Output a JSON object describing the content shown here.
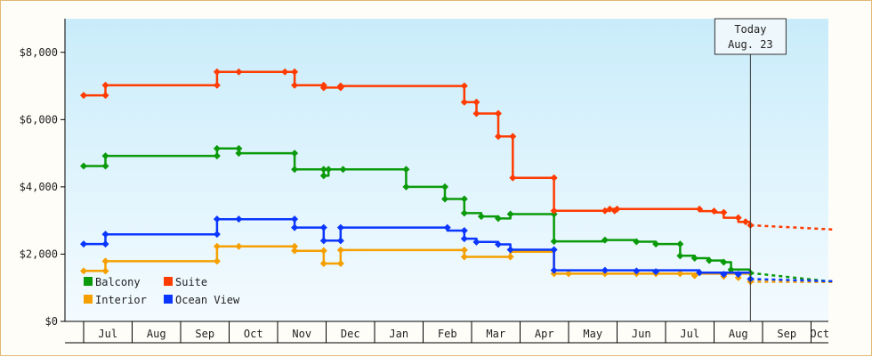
{
  "chart_data": {
    "type": "line",
    "step": true,
    "title": "",
    "xlabel": "",
    "ylabel": "",
    "ylim": [
      0,
      9000
    ],
    "y_ticks": [
      0,
      2000,
      4000,
      6000,
      8000
    ],
    "y_tick_labels": [
      "$0",
      "$2,000",
      "$4,000",
      "$6,000",
      "$8,000"
    ],
    "x_ticks": [
      "Jul",
      "Aug",
      "Sep",
      "Oct",
      "Nov",
      "Dec",
      "Jan",
      "Feb",
      "Mar",
      "Apr",
      "May",
      "Jun",
      "Jul",
      "Aug",
      "Sep",
      "Oct"
    ],
    "x_range_months": [
      0,
      15.5
    ],
    "grid": false,
    "legend_position": "bottom-left",
    "today_marker": {
      "line1": "Today",
      "line2": "Aug. 23",
      "x": 13.75
    },
    "colors": {
      "Balcony": "#0a9a0a",
      "Suite": "#ff3b00",
      "Interior": "#f5a000",
      "Ocean View": "#0a36ff"
    },
    "series": [
      {
        "name": "Balcony",
        "points": [
          [
            0,
            4620
          ],
          [
            0.45,
            4620
          ],
          [
            0.45,
            4920
          ],
          [
            2.75,
            4920
          ],
          [
            2.75,
            5140
          ],
          [
            3.2,
            5140
          ],
          [
            3.2,
            5000
          ],
          [
            4.35,
            5000
          ],
          [
            4.35,
            4520
          ],
          [
            4.95,
            4520
          ],
          [
            4.95,
            4330
          ],
          [
            5.05,
            4330
          ],
          [
            5.05,
            4520
          ],
          [
            6.65,
            4520
          ],
          [
            6.65,
            4000
          ],
          [
            7.45,
            4000
          ],
          [
            7.45,
            3640
          ],
          [
            7.85,
            3640
          ],
          [
            7.85,
            3220
          ],
          [
            8.2,
            3220
          ],
          [
            8.2,
            3120
          ],
          [
            8.55,
            3120
          ],
          [
            8.55,
            3060
          ],
          [
            8.8,
            3060
          ],
          [
            8.8,
            3190
          ],
          [
            9.7,
            3190
          ],
          [
            9.7,
            2380
          ],
          [
            10.75,
            2380
          ],
          [
            10.75,
            2420
          ],
          [
            11.4,
            2420
          ],
          [
            11.4,
            2370
          ],
          [
            11.8,
            2370
          ],
          [
            11.8,
            2300
          ],
          [
            12.3,
            2300
          ],
          [
            12.3,
            1950
          ],
          [
            12.6,
            1950
          ],
          [
            12.6,
            1880
          ],
          [
            12.9,
            1880
          ],
          [
            12.9,
            1810
          ],
          [
            13.2,
            1810
          ],
          [
            13.2,
            1760
          ],
          [
            13.35,
            1760
          ],
          [
            13.35,
            1540
          ],
          [
            13.75,
            1540
          ]
        ],
        "projection": [
          [
            13.75,
            1440
          ],
          [
            15.5,
            1170
          ]
        ],
        "markers": [
          [
            0,
            4620
          ],
          [
            0.45,
            4620
          ],
          [
            0.45,
            4920
          ],
          [
            2.75,
            4920
          ],
          [
            2.75,
            5140
          ],
          [
            3.2,
            5140
          ],
          [
            3.2,
            5000
          ],
          [
            4.35,
            5000
          ],
          [
            4.35,
            4520
          ],
          [
            4.95,
            4520
          ],
          [
            4.95,
            4330
          ],
          [
            5.05,
            4520
          ],
          [
            5.35,
            4520
          ],
          [
            6.65,
            4520
          ],
          [
            6.65,
            4000
          ],
          [
            7.45,
            4000
          ],
          [
            7.45,
            3640
          ],
          [
            7.85,
            3640
          ],
          [
            7.85,
            3220
          ],
          [
            8.2,
            3120
          ],
          [
            8.55,
            3060
          ],
          [
            8.8,
            3190
          ],
          [
            9.7,
            3190
          ],
          [
            9.7,
            2380
          ],
          [
            10.75,
            2420
          ],
          [
            11.4,
            2370
          ],
          [
            11.8,
            2300
          ],
          [
            12.3,
            2300
          ],
          [
            12.3,
            1950
          ],
          [
            12.6,
            1880
          ],
          [
            12.9,
            1810
          ],
          [
            13.2,
            1760
          ],
          [
            13.35,
            1540
          ],
          [
            13.75,
            1440
          ]
        ]
      },
      {
        "name": "Suite",
        "points": [
          [
            0,
            6720
          ],
          [
            0.45,
            6720
          ],
          [
            0.45,
            7020
          ],
          [
            2.75,
            7020
          ],
          [
            2.75,
            7420
          ],
          [
            4.35,
            7420
          ],
          [
            4.35,
            7020
          ],
          [
            4.95,
            7020
          ],
          [
            4.95,
            6950
          ],
          [
            5.3,
            6950
          ],
          [
            5.3,
            7000
          ],
          [
            7.85,
            7000
          ],
          [
            7.85,
            6520
          ],
          [
            8.1,
            6520
          ],
          [
            8.1,
            6180
          ],
          [
            8.55,
            6180
          ],
          [
            8.55,
            5500
          ],
          [
            8.85,
            5500
          ],
          [
            8.85,
            4270
          ],
          [
            9.7,
            4270
          ],
          [
            9.7,
            3290
          ],
          [
            10.85,
            3290
          ],
          [
            10.85,
            3340
          ],
          [
            12.7,
            3340
          ],
          [
            12.7,
            3280
          ],
          [
            13.0,
            3280
          ],
          [
            13.0,
            3240
          ],
          [
            13.2,
            3240
          ],
          [
            13.2,
            3080
          ],
          [
            13.5,
            3080
          ],
          [
            13.5,
            2960
          ],
          [
            13.75,
            2960
          ]
        ],
        "projection": [
          [
            13.75,
            2860
          ],
          [
            15.5,
            2730
          ]
        ],
        "markers": [
          [
            0,
            6720
          ],
          [
            0.45,
            6720
          ],
          [
            0.45,
            7020
          ],
          [
            2.75,
            7020
          ],
          [
            2.75,
            7420
          ],
          [
            3.2,
            7420
          ],
          [
            4.15,
            7420
          ],
          [
            4.35,
            7420
          ],
          [
            4.35,
            7020
          ],
          [
            4.95,
            7020
          ],
          [
            4.95,
            6950
          ],
          [
            5.3,
            6950
          ],
          [
            5.3,
            7000
          ],
          [
            7.85,
            7000
          ],
          [
            7.85,
            6520
          ],
          [
            8.1,
            6520
          ],
          [
            8.1,
            6180
          ],
          [
            8.55,
            6180
          ],
          [
            8.55,
            5500
          ],
          [
            8.85,
            5500
          ],
          [
            8.85,
            4270
          ],
          [
            9.7,
            4270
          ],
          [
            9.7,
            3290
          ],
          [
            10.75,
            3290
          ],
          [
            10.85,
            3340
          ],
          [
            10.95,
            3290
          ],
          [
            11.0,
            3340
          ],
          [
            12.7,
            3340
          ],
          [
            13.0,
            3280
          ],
          [
            13.2,
            3240
          ],
          [
            13.5,
            3080
          ],
          [
            13.65,
            2960
          ],
          [
            13.75,
            2860
          ]
        ]
      },
      {
        "name": "Interior",
        "points": [
          [
            0,
            1500
          ],
          [
            0.45,
            1500
          ],
          [
            0.45,
            1790
          ],
          [
            2.75,
            1790
          ],
          [
            2.75,
            2230
          ],
          [
            4.35,
            2230
          ],
          [
            4.35,
            2100
          ],
          [
            4.95,
            2100
          ],
          [
            4.95,
            1720
          ],
          [
            5.3,
            1720
          ],
          [
            5.3,
            2120
          ],
          [
            7.85,
            2120
          ],
          [
            7.85,
            1920
          ],
          [
            8.8,
            1920
          ],
          [
            8.8,
            2070
          ],
          [
            9.7,
            2070
          ],
          [
            9.7,
            1420
          ],
          [
            13.75,
            1420
          ]
        ],
        "projection": [
          [
            13.75,
            1180
          ],
          [
            15.5,
            1170
          ]
        ],
        "markers": [
          [
            0,
            1500
          ],
          [
            0.45,
            1500
          ],
          [
            0.45,
            1790
          ],
          [
            2.75,
            1790
          ],
          [
            2.75,
            2230
          ],
          [
            3.2,
            2230
          ],
          [
            4.35,
            2230
          ],
          [
            4.35,
            2100
          ],
          [
            4.95,
            2100
          ],
          [
            4.95,
            1720
          ],
          [
            5.3,
            1720
          ],
          [
            5.3,
            2120
          ],
          [
            7.85,
            2120
          ],
          [
            7.85,
            1920
          ],
          [
            8.8,
            1920
          ],
          [
            9.7,
            1420
          ],
          [
            10.0,
            1420
          ],
          [
            10.75,
            1420
          ],
          [
            11.4,
            1420
          ],
          [
            11.8,
            1420
          ],
          [
            12.3,
            1420
          ],
          [
            12.6,
            1360
          ],
          [
            13.2,
            1340
          ],
          [
            13.5,
            1300
          ],
          [
            13.75,
            1180
          ]
        ]
      },
      {
        "name": "Ocean View",
        "points": [
          [
            0,
            2300
          ],
          [
            0.45,
            2300
          ],
          [
            0.45,
            2590
          ],
          [
            2.75,
            2590
          ],
          [
            2.75,
            3040
          ],
          [
            4.35,
            3040
          ],
          [
            4.35,
            2790
          ],
          [
            4.95,
            2790
          ],
          [
            4.95,
            2400
          ],
          [
            5.3,
            2400
          ],
          [
            5.3,
            2790
          ],
          [
            7.5,
            2790
          ],
          [
            7.5,
            2700
          ],
          [
            7.85,
            2700
          ],
          [
            7.85,
            2460
          ],
          [
            8.1,
            2460
          ],
          [
            8.1,
            2360
          ],
          [
            8.55,
            2360
          ],
          [
            8.55,
            2290
          ],
          [
            8.8,
            2290
          ],
          [
            8.8,
            2130
          ],
          [
            9.7,
            2130
          ],
          [
            9.7,
            1520
          ],
          [
            12.7,
            1520
          ],
          [
            12.7,
            1450
          ],
          [
            13.75,
            1450
          ]
        ],
        "projection": [
          [
            13.75,
            1260
          ],
          [
            15.5,
            1190
          ]
        ],
        "markers": [
          [
            0,
            2300
          ],
          [
            0.45,
            2300
          ],
          [
            0.45,
            2590
          ],
          [
            2.75,
            2590
          ],
          [
            2.75,
            3040
          ],
          [
            3.2,
            3040
          ],
          [
            4.35,
            3040
          ],
          [
            4.35,
            2790
          ],
          [
            4.95,
            2790
          ],
          [
            4.95,
            2400
          ],
          [
            5.3,
            2400
          ],
          [
            5.3,
            2790
          ],
          [
            7.5,
            2790
          ],
          [
            7.85,
            2700
          ],
          [
            7.85,
            2460
          ],
          [
            8.1,
            2360
          ],
          [
            8.55,
            2290
          ],
          [
            8.8,
            2130
          ],
          [
            9.7,
            2130
          ],
          [
            9.7,
            1520
          ],
          [
            10.75,
            1520
          ],
          [
            11.4,
            1500
          ],
          [
            11.8,
            1480
          ],
          [
            12.7,
            1450
          ],
          [
            13.2,
            1400
          ],
          [
            13.5,
            1400
          ],
          [
            13.75,
            1260
          ]
        ]
      }
    ]
  }
}
